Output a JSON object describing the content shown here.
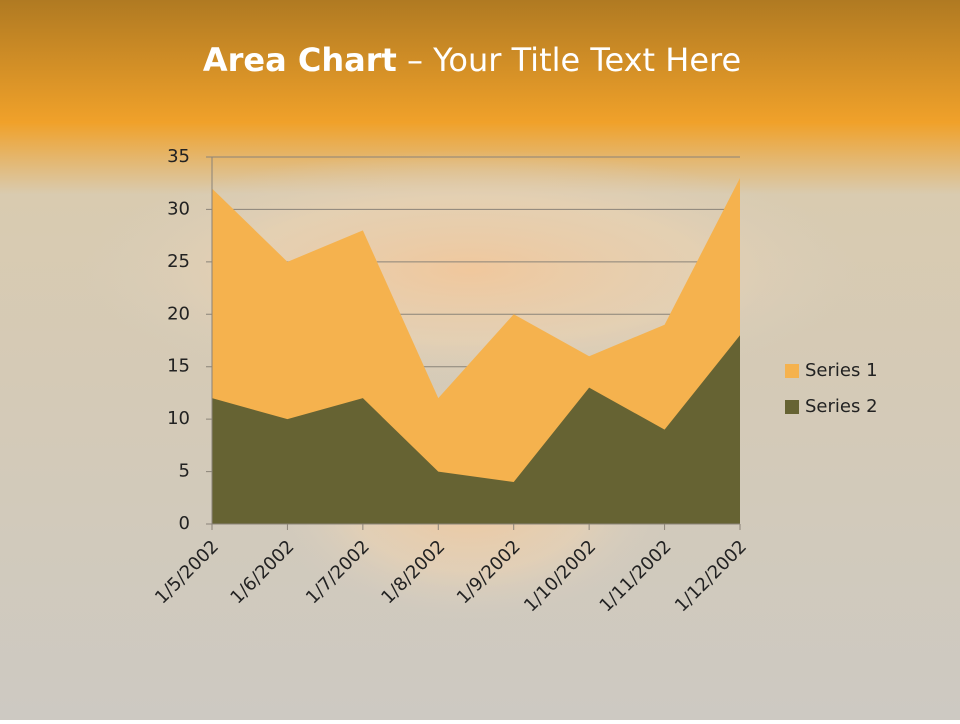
{
  "chart_data": {
    "type": "area",
    "title_bold": "Area Chart",
    "title": "– Your Title Text Here",
    "categories": [
      "1/5/2002",
      "1/6/2002",
      "1/7/2002",
      "1/8/2002",
      "1/9/2002",
      "1/10/2002",
      "1/11/2002",
      "1/12/2002"
    ],
    "series": [
      {
        "name": "Series 1",
        "color": "#f5b24e",
        "values": [
          32,
          25,
          28,
          12,
          20,
          16,
          19,
          33
        ]
      },
      {
        "name": "Series 2",
        "color": "#666333",
        "values": [
          12,
          10,
          12,
          5,
          4,
          13,
          9,
          18
        ]
      }
    ],
    "ylim": [
      0,
      35
    ],
    "yticks": [
      0,
      5,
      10,
      15,
      20,
      25,
      30,
      35
    ],
    "grid": true,
    "legend": "right"
  }
}
